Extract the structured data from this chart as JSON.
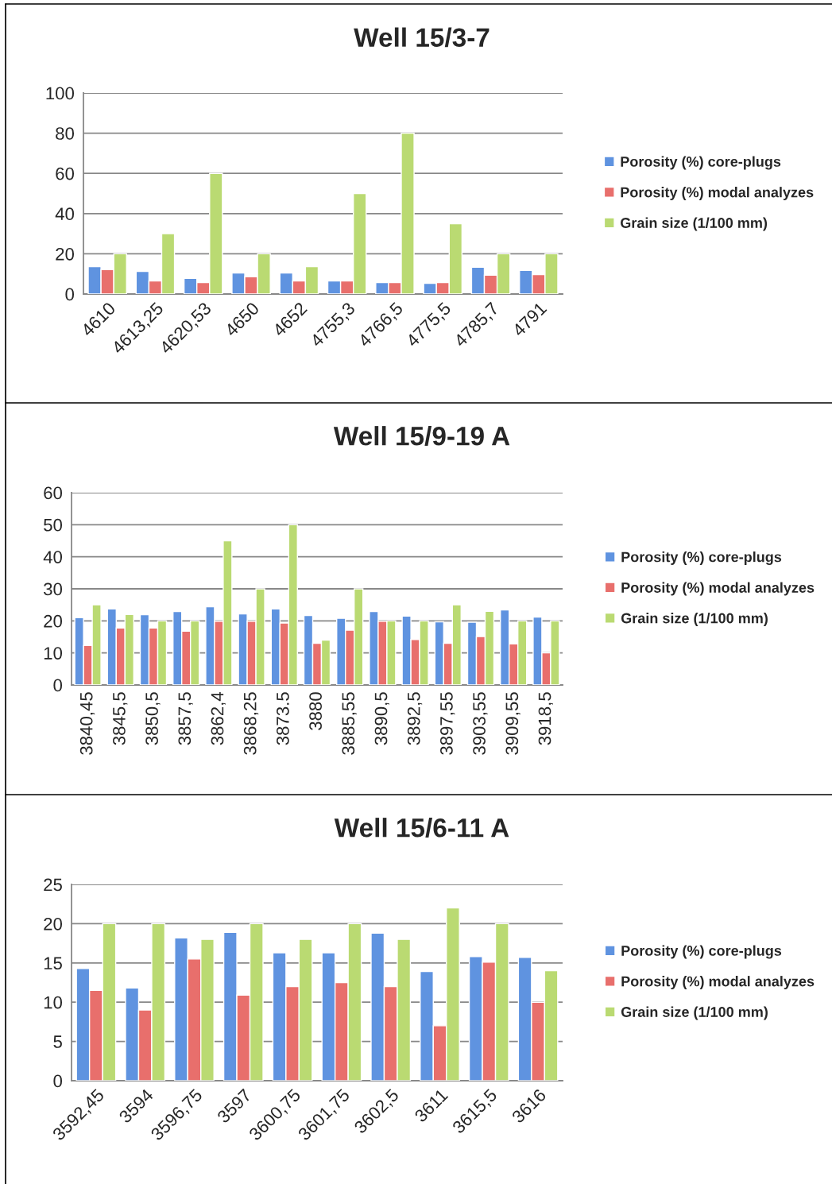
{
  "chart_data": [
    {
      "type": "bar",
      "title": "Well 15/3-7",
      "categories": [
        "4610",
        "4613,25",
        "4620,53",
        "4650",
        "4652",
        "4755,3",
        "4766,5",
        "4775,5",
        "4785,7",
        "4791"
      ],
      "ylim": [
        0,
        100
      ],
      "yticks": [
        0,
        20,
        40,
        60,
        80,
        100
      ],
      "grid": "y",
      "legend": "right",
      "series": [
        {
          "name": "Porosity (%) core-plugs",
          "color": "#5f93e0",
          "values": [
            13.6,
            11.2,
            7.8,
            10.5,
            10.5,
            6.5,
            5.7,
            5.3,
            13.3,
            11.7
          ]
        },
        {
          "name": "Porosity (%) modal analyzes",
          "color": "#e86f6c",
          "values": [
            12.1,
            6.5,
            5.7,
            8.6,
            6.5,
            6.5,
            5.7,
            5.7,
            9.4,
            9.7
          ]
        },
        {
          "name": "Grain size (1/100 mm)",
          "color": "#bada72",
          "values": [
            20,
            30,
            60,
            20,
            13.6,
            50,
            80,
            35,
            20,
            20
          ]
        }
      ]
    },
    {
      "type": "bar",
      "title": "Well 15/9-19 A",
      "categories": [
        "3840,45",
        "3845,5",
        "3850,5",
        "3857,5",
        "3862,4",
        "3868,25",
        "3873.5",
        "3880",
        "3885,55",
        "3890,5",
        "3892,5",
        "3897,55",
        "3903,55",
        "3909,55",
        "3918,5"
      ],
      "ylim": [
        0,
        60
      ],
      "yticks": [
        0,
        10,
        20,
        30,
        40,
        50,
        60
      ],
      "grid": "y",
      "legend": "right",
      "series": [
        {
          "name": "Porosity (%) core-plugs",
          "color": "#5f93e0",
          "values": [
            21.0,
            23.7,
            21.9,
            22.9,
            24.4,
            22.2,
            23.7,
            21.7,
            20.8,
            22.9,
            21.5,
            19.7,
            19.6,
            23.4,
            21.2
          ]
        },
        {
          "name": "Porosity (%) modal analyzes",
          "color": "#e86f6c",
          "values": [
            12.3,
            17.8,
            17.8,
            16.8,
            19.9,
            19.9,
            19.3,
            13.0,
            17.1,
            19.9,
            14.2,
            13.0,
            15.1,
            12.8,
            10.0
          ]
        },
        {
          "name": "Grain size (1/100 mm)",
          "color": "#bada72",
          "values": [
            25,
            22,
            20,
            20,
            45,
            30,
            50,
            14,
            30,
            20,
            20,
            25,
            23,
            20,
            20
          ]
        }
      ]
    },
    {
      "type": "bar",
      "title": "Well 15/6-11 A",
      "categories": [
        "3592,45",
        "3594",
        "3596,75",
        "3597",
        "3600,75",
        "3601,75",
        "3602,5",
        "3611",
        "3615,5",
        "3616"
      ],
      "ylim": [
        0,
        25
      ],
      "yticks": [
        0,
        5,
        10,
        15,
        20,
        25
      ],
      "grid": "y",
      "legend": "right",
      "series": [
        {
          "name": "Porosity (%) core-plugs",
          "color": "#5f93e0",
          "values": [
            14.3,
            11.8,
            18.2,
            18.9,
            16.3,
            16.3,
            18.8,
            13.9,
            15.8,
            15.7
          ]
        },
        {
          "name": "Porosity (%) modal analyzes",
          "color": "#e86f6c",
          "values": [
            11.5,
            9.0,
            15.5,
            10.9,
            12.0,
            12.5,
            12.0,
            7.0,
            15.1,
            10.0
          ]
        },
        {
          "name": "Grain size (1/100 mm)",
          "color": "#bada72",
          "values": [
            20,
            20,
            18,
            20,
            18,
            20,
            18,
            22,
            20,
            14
          ]
        }
      ]
    }
  ]
}
